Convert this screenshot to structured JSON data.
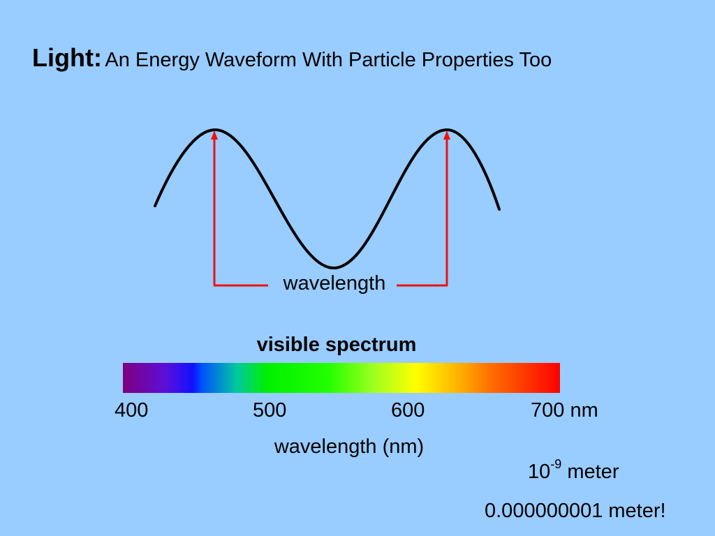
{
  "title": {
    "bold": "Light:",
    "rest": "An Energy Waveform With Particle Properties Too"
  },
  "wave": {
    "label": "wavelength"
  },
  "spectrum": {
    "title": "visible spectrum",
    "ticks": [
      "400",
      "500",
      "600",
      "700 nm"
    ],
    "axis_label": "wavelength (nm)"
  },
  "notes": {
    "sci_base": "10",
    "sci_exp": "-9",
    "sci_unit": "meter",
    "decimal": "0.000000001 meter!"
  },
  "colors": {
    "background": "#99ccff",
    "wave": "#000000",
    "marker": "#ee1111"
  }
}
